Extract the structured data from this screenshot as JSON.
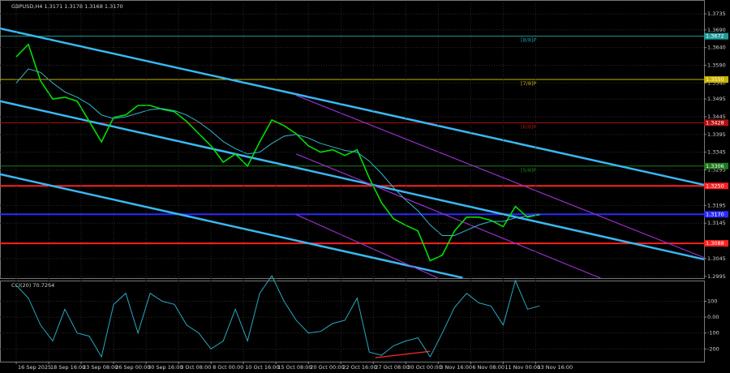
{
  "chart_data": [
    {
      "type": "line",
      "title": "GBPUSD,H4  1.3171 1.3178 1.3168 1.3170",
      "x": [
        0,
        6,
        12,
        18,
        24,
        30,
        36,
        42,
        48,
        54,
        60,
        66,
        72,
        78,
        84,
        90,
        96,
        102,
        108,
        114,
        120,
        126,
        132,
        138,
        144,
        150,
        156,
        162,
        168,
        174,
        180,
        186,
        192,
        198,
        204,
        210,
        216,
        222,
        228,
        234,
        240,
        246,
        252,
        258
      ],
      "series": [
        {
          "color": "#00e000",
          "values": [
            1.3614,
            1.3649,
            1.3546,
            1.3495,
            1.35,
            1.3489,
            1.3432,
            1.3374,
            1.3443,
            1.345,
            1.3477,
            1.3477,
            1.3466,
            1.3459,
            1.3432,
            1.3397,
            1.3363,
            1.3317,
            1.334,
            1.3306,
            1.3374,
            1.3436,
            1.342,
            1.3397,
            1.3363,
            1.3345,
            1.3352,
            1.3336,
            1.3352,
            1.3272,
            1.3203,
            1.3157,
            1.3139,
            1.3123,
            1.3039,
            1.3055,
            1.3123,
            1.3162,
            1.3162,
            1.3153,
            1.3135,
            1.3192,
            1.3162,
            1.317
          ]
        },
        {
          "color": "#35b6cc",
          "values": [
            1.354,
            1.358,
            1.357,
            1.354,
            1.3515,
            1.35,
            1.348,
            1.345,
            1.344,
            1.3445,
            1.3455,
            1.3465,
            1.3468,
            1.3462,
            1.345,
            1.343,
            1.3405,
            1.3375,
            1.3355,
            1.334,
            1.3345,
            1.337,
            1.339,
            1.3395,
            1.3385,
            1.337,
            1.336,
            1.335,
            1.3345,
            1.332,
            1.3285,
            1.3245,
            1.321,
            1.318,
            1.314,
            1.311,
            1.311,
            1.3125,
            1.314,
            1.315,
            1.315,
            1.316,
            1.3165,
            1.3168
          ]
        }
      ],
      "trendlines": [
        {
          "color": "#3ab8f0",
          "x": [
            -8,
            339
          ],
          "y": [
            1.3694,
            1.3253
          ]
        },
        {
          "color": "#3ab8f0",
          "x": [
            -8,
            339
          ],
          "y": [
            1.3489,
            1.3043
          ]
        },
        {
          "color": "#3ab8f0",
          "x": [
            -8,
            220
          ],
          "y": [
            1.3283,
            1.2991
          ]
        },
        {
          "color": "#9a30d0",
          "x": [
            138,
            339
          ],
          "y": [
            1.3505,
            1.3048
          ]
        },
        {
          "color": "#9a30d0",
          "x": [
            138,
            288
          ],
          "y": [
            1.334,
            1.299
          ]
        },
        {
          "color": "#9a30d0",
          "x": [
            138,
            208
          ],
          "y": [
            1.3169,
            1.299
          ]
        }
      ],
      "levels": [
        {
          "value": 1.3672,
          "label": "1.3672",
          "tag": "[8/8]P",
          "color": "#1f9a9a"
        },
        {
          "value": 1.355,
          "label": "1.3550",
          "tag": "[7/8]P",
          "color": "#c8b400"
        },
        {
          "value": 1.3428,
          "label": "1.3428",
          "tag": "[6/8]P",
          "color": "#b01010"
        },
        {
          "value": 1.3306,
          "label": "1.3306",
          "tag": "[5/8]P",
          "color": "#1e7a1e"
        },
        {
          "value": 1.325,
          "label": "1.3250",
          "color": "#ff2020"
        },
        {
          "value": 1.317,
          "label": "1.3170",
          "color": "#2a2aff"
        },
        {
          "value": 1.3088,
          "label": "1.3088",
          "color": "#ff2020"
        }
      ],
      "xlim": [
        -8,
        339
      ],
      "ylim": [
        1.299,
        1.3765
      ],
      "yticks": [
        {
          "value": 1.3735,
          "label": "1.3735"
        },
        {
          "value": 1.369,
          "label": "1.3690"
        },
        {
          "value": 1.364,
          "label": "1.3640"
        },
        {
          "value": 1.359,
          "label": "1.3590"
        },
        {
          "value": 1.354,
          "label": "1.3540"
        },
        {
          "value": 1.3495,
          "label": "1.3495"
        },
        {
          "value": 1.3445,
          "label": "1.3445"
        },
        {
          "value": 1.3395,
          "label": "1.3395"
        },
        {
          "value": 1.3345,
          "label": "1.3345"
        },
        {
          "value": 1.3295,
          "label": "1.3295"
        },
        {
          "value": 1.3195,
          "label": "1.3195"
        },
        {
          "value": 1.3145,
          "label": "1.3145"
        },
        {
          "value": 1.3045,
          "label": "1.3045"
        },
        {
          "value": 1.2995,
          "label": "1.2995"
        }
      ],
      "grid": true
    },
    {
      "type": "line",
      "title": "CCI(20) 70.7264",
      "x": [
        0,
        6,
        12,
        18,
        24,
        30,
        36,
        42,
        48,
        54,
        60,
        66,
        72,
        78,
        84,
        90,
        96,
        102,
        108,
        114,
        120,
        126,
        132,
        138,
        144,
        150,
        156,
        162,
        168,
        174,
        180,
        186,
        192,
        198,
        204,
        210,
        216,
        222,
        228,
        234,
        240,
        246,
        252,
        258
      ],
      "series": [
        {
          "color": "#2aa8c0",
          "values": [
            200,
            120,
            -50,
            -150,
            50,
            -100,
            -120,
            -250,
            80,
            150,
            -100,
            150,
            100,
            80,
            -50,
            -100,
            -200,
            -150,
            50,
            -150,
            150,
            260,
            100,
            -20,
            -100,
            -90,
            -40,
            -20,
            120,
            -220,
            -240,
            -180,
            -150,
            -130,
            -250,
            -100,
            60,
            150,
            90,
            70,
            -50,
            230,
            50,
            70.7264
          ]
        }
      ],
      "trendlines": [
        {
          "color": "#ff2a2a",
          "x": [
            177,
            204
          ],
          "y": [
            -255,
            -215
          ]
        }
      ],
      "xlim": [
        -8,
        339
      ],
      "ylim": [
        -280,
        230
      ],
      "yticks": [
        100,
        {
          "value": 0,
          "label": "0.00"
        },
        -100,
        -200
      ],
      "xticks": [
        {
          "value": 0,
          "label": "16 Sep 2025"
        },
        {
          "value": 16,
          "label": "18 Sep 16:00"
        },
        {
          "value": 32,
          "label": "23 Sep 08:00"
        },
        {
          "value": 48,
          "label": "26 Sep 00:00"
        },
        {
          "value": 64,
          "label": "30 Sep 16:00"
        },
        {
          "value": 80,
          "label": "3 Oct 08:00"
        },
        {
          "value": 96,
          "label": "8 Oct 00:00"
        },
        {
          "value": 112,
          "label": "10 Oct 16:00"
        },
        {
          "value": 128,
          "label": "15 Oct 08:00"
        },
        {
          "value": 144,
          "label": "20 Oct 00:00"
        },
        {
          "value": 160,
          "label": "22 Oct 16:00"
        },
        {
          "value": 176,
          "label": "27 Oct 08:00"
        },
        {
          "value": 192,
          "label": "30 Oct 00:00"
        },
        {
          "value": 208,
          "label": "3 Nov 16:00"
        },
        {
          "value": 224,
          "label": "6 Nov 08:00"
        },
        {
          "value": 240,
          "label": "11 Nov 00:00"
        },
        {
          "value": 256,
          "label": "13 Nov 16:00"
        }
      ],
      "grid": true
    }
  ]
}
